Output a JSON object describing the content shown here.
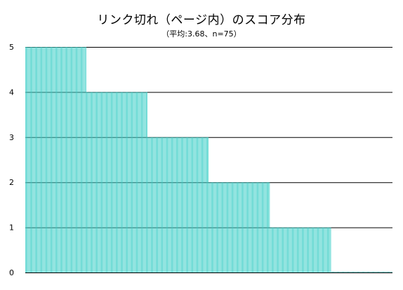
{
  "chart_data": {
    "type": "bar",
    "title": "リンク切れ（ページ内）のスコア分布",
    "subtitle": "（平均:3.68、n=75）",
    "xlabel": "",
    "ylabel": "",
    "ylim": [
      0,
      5
    ],
    "yticks": [
      "0",
      "1",
      "2",
      "3",
      "4",
      "5"
    ],
    "grid": true,
    "bar_color": "#3fcfc8",
    "gridline_color": "#000000",
    "values": [
      5,
      5,
      5,
      5,
      5,
      5,
      5,
      5,
      5,
      5,
      5,
      5,
      5,
      5,
      5,
      5,
      5,
      5,
      5,
      5,
      5,
      5,
      5,
      5,
      5,
      5,
      5,
      5,
      5,
      5,
      5,
      5,
      5,
      5,
      5,
      5,
      5,
      5,
      5,
      5,
      5,
      5,
      5,
      5,
      5,
      5,
      5,
      5,
      5,
      5,
      5,
      5,
      5,
      5,
      5,
      5,
      5,
      5,
      5,
      5,
      5,
      5,
      5,
      5,
      5,
      5,
      5,
      5,
      5,
      5,
      5,
      5,
      5,
      5,
      5,
      4,
      4,
      4,
      4,
      4,
      4,
      4,
      4,
      4,
      4,
      4,
      4,
      4,
      4,
      4,
      4,
      4,
      4,
      4,
      4,
      4,
      4,
      4,
      4,
      4,
      4,
      4,
      4,
      4,
      4,
      4,
      4,
      4,
      4,
      4,
      4,
      4,
      4,
      4,
      4,
      4,
      4,
      4,
      4,
      4,
      4,
      4,
      4,
      4,
      4,
      4,
      4,
      4,
      4,
      4,
      4,
      4,
      4,
      4,
      4,
      4,
      4,
      4,
      4,
      4,
      4,
      4,
      4,
      4,
      4,
      4,
      4,
      4,
      4,
      4,
      3,
      3,
      3,
      3,
      3,
      3,
      3,
      3,
      3,
      3,
      3,
      3,
      3,
      3,
      3,
      3,
      3,
      3,
      3,
      3,
      3,
      3,
      3,
      3,
      3,
      3,
      3,
      3,
      3,
      3,
      3,
      3,
      3,
      3,
      3,
      3,
      3,
      3,
      3,
      3,
      3,
      3,
      3,
      3,
      3,
      3,
      3,
      3,
      3,
      3,
      3,
      3,
      3,
      3,
      3,
      3,
      3,
      3,
      3,
      3,
      3,
      3,
      3,
      3,
      3,
      3,
      3,
      3,
      3,
      3,
      3,
      3,
      3,
      3,
      3,
      2,
      2,
      2,
      2,
      2,
      2,
      2,
      2,
      2,
      2,
      2,
      2,
      2,
      2,
      2,
      2,
      2,
      2,
      2,
      2,
      2,
      2,
      2,
      2,
      2,
      2,
      2,
      2,
      2,
      2,
      2,
      2,
      2,
      2,
      2,
      2,
      2,
      2,
      2,
      2,
      2,
      2,
      2,
      2,
      2,
      2,
      2,
      2,
      2,
      2,
      2,
      2,
      2,
      2,
      2,
      2,
      2,
      2,
      2,
      2,
      2,
      2,
      2,
      2,
      2,
      2,
      2,
      2,
      2,
      2,
      2,
      2,
      2,
      2,
      2,
      1,
      1,
      1,
      1,
      1,
      1,
      1,
      1,
      1,
      1,
      1,
      1,
      1,
      1,
      1,
      1,
      1,
      1,
      1,
      1,
      1,
      1,
      1,
      1,
      1,
      1,
      1,
      1,
      1,
      1,
      1,
      1,
      1,
      1,
      1,
      1,
      1,
      1,
      1,
      1,
      1,
      1,
      1,
      1,
      1,
      1,
      1,
      1,
      1,
      1,
      1,
      1,
      1,
      1,
      1,
      1,
      1,
      1,
      1,
      1,
      1,
      1,
      1,
      1,
      1,
      1,
      1,
      1,
      1,
      1,
      1,
      1,
      1,
      1,
      1,
      0,
      0,
      0,
      0,
      0,
      0,
      0,
      0,
      0,
      0,
      0,
      0,
      0,
      0,
      0,
      0,
      0,
      0,
      0,
      0,
      0,
      0,
      0,
      0,
      0,
      0,
      0,
      0,
      0,
      0,
      0,
      0,
      0,
      0,
      0,
      0,
      0,
      0,
      0,
      0,
      0,
      0,
      0,
      0,
      0,
      0,
      0,
      0,
      0,
      0,
      0,
      0,
      0,
      0,
      0,
      0,
      0,
      0,
      0,
      0,
      0,
      0,
      0,
      0,
      0,
      0,
      0,
      0,
      0,
      0,
      0,
      0,
      0,
      0,
      0
    ]
  }
}
